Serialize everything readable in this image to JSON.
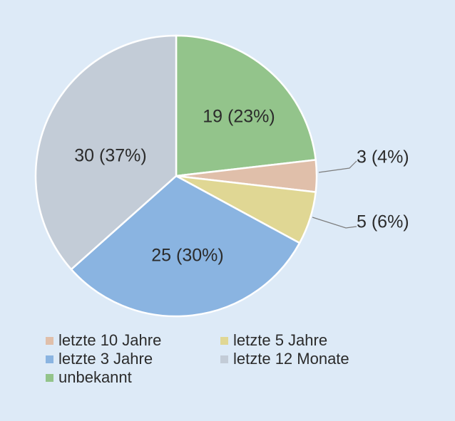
{
  "chart_data": {
    "type": "pie",
    "slices": [
      {
        "name": "unbekannt",
        "value": 19,
        "label": "19 (23%)",
        "color": "#93c48b"
      },
      {
        "name": "letzte 10 Jahre",
        "value": 3,
        "label": "3 (4%)",
        "color": "#e0bfaa"
      },
      {
        "name": "letzte 5 Jahre",
        "value": 5,
        "label": "5 (6%)",
        "color": "#e0d794"
      },
      {
        "name": "letzte 3 Jahre",
        "value": 25,
        "label": "25 (30%)",
        "color": "#8ab4e1"
      },
      {
        "name": "letzte 12 Monate",
        "value": 30,
        "label": "30 (37%)",
        "color": "#c3ccd7"
      }
    ],
    "legend": {
      "placement": "bottom",
      "items": [
        {
          "label": "letzte 10 Jahre",
          "color": "#e0bfaa"
        },
        {
          "label": "letzte 5 Jahre",
          "color": "#e0d794"
        },
        {
          "label": "letzte 3 Jahre",
          "color": "#8ab4e1"
        },
        {
          "label": "letzte 12 Monate",
          "color": "#c3ccd7"
        },
        {
          "label": "unbekannt",
          "color": "#93c48b"
        }
      ]
    },
    "background": "#ddeaf7",
    "slice_border": "#ffffff",
    "leader_color": "#7d7d7d"
  }
}
